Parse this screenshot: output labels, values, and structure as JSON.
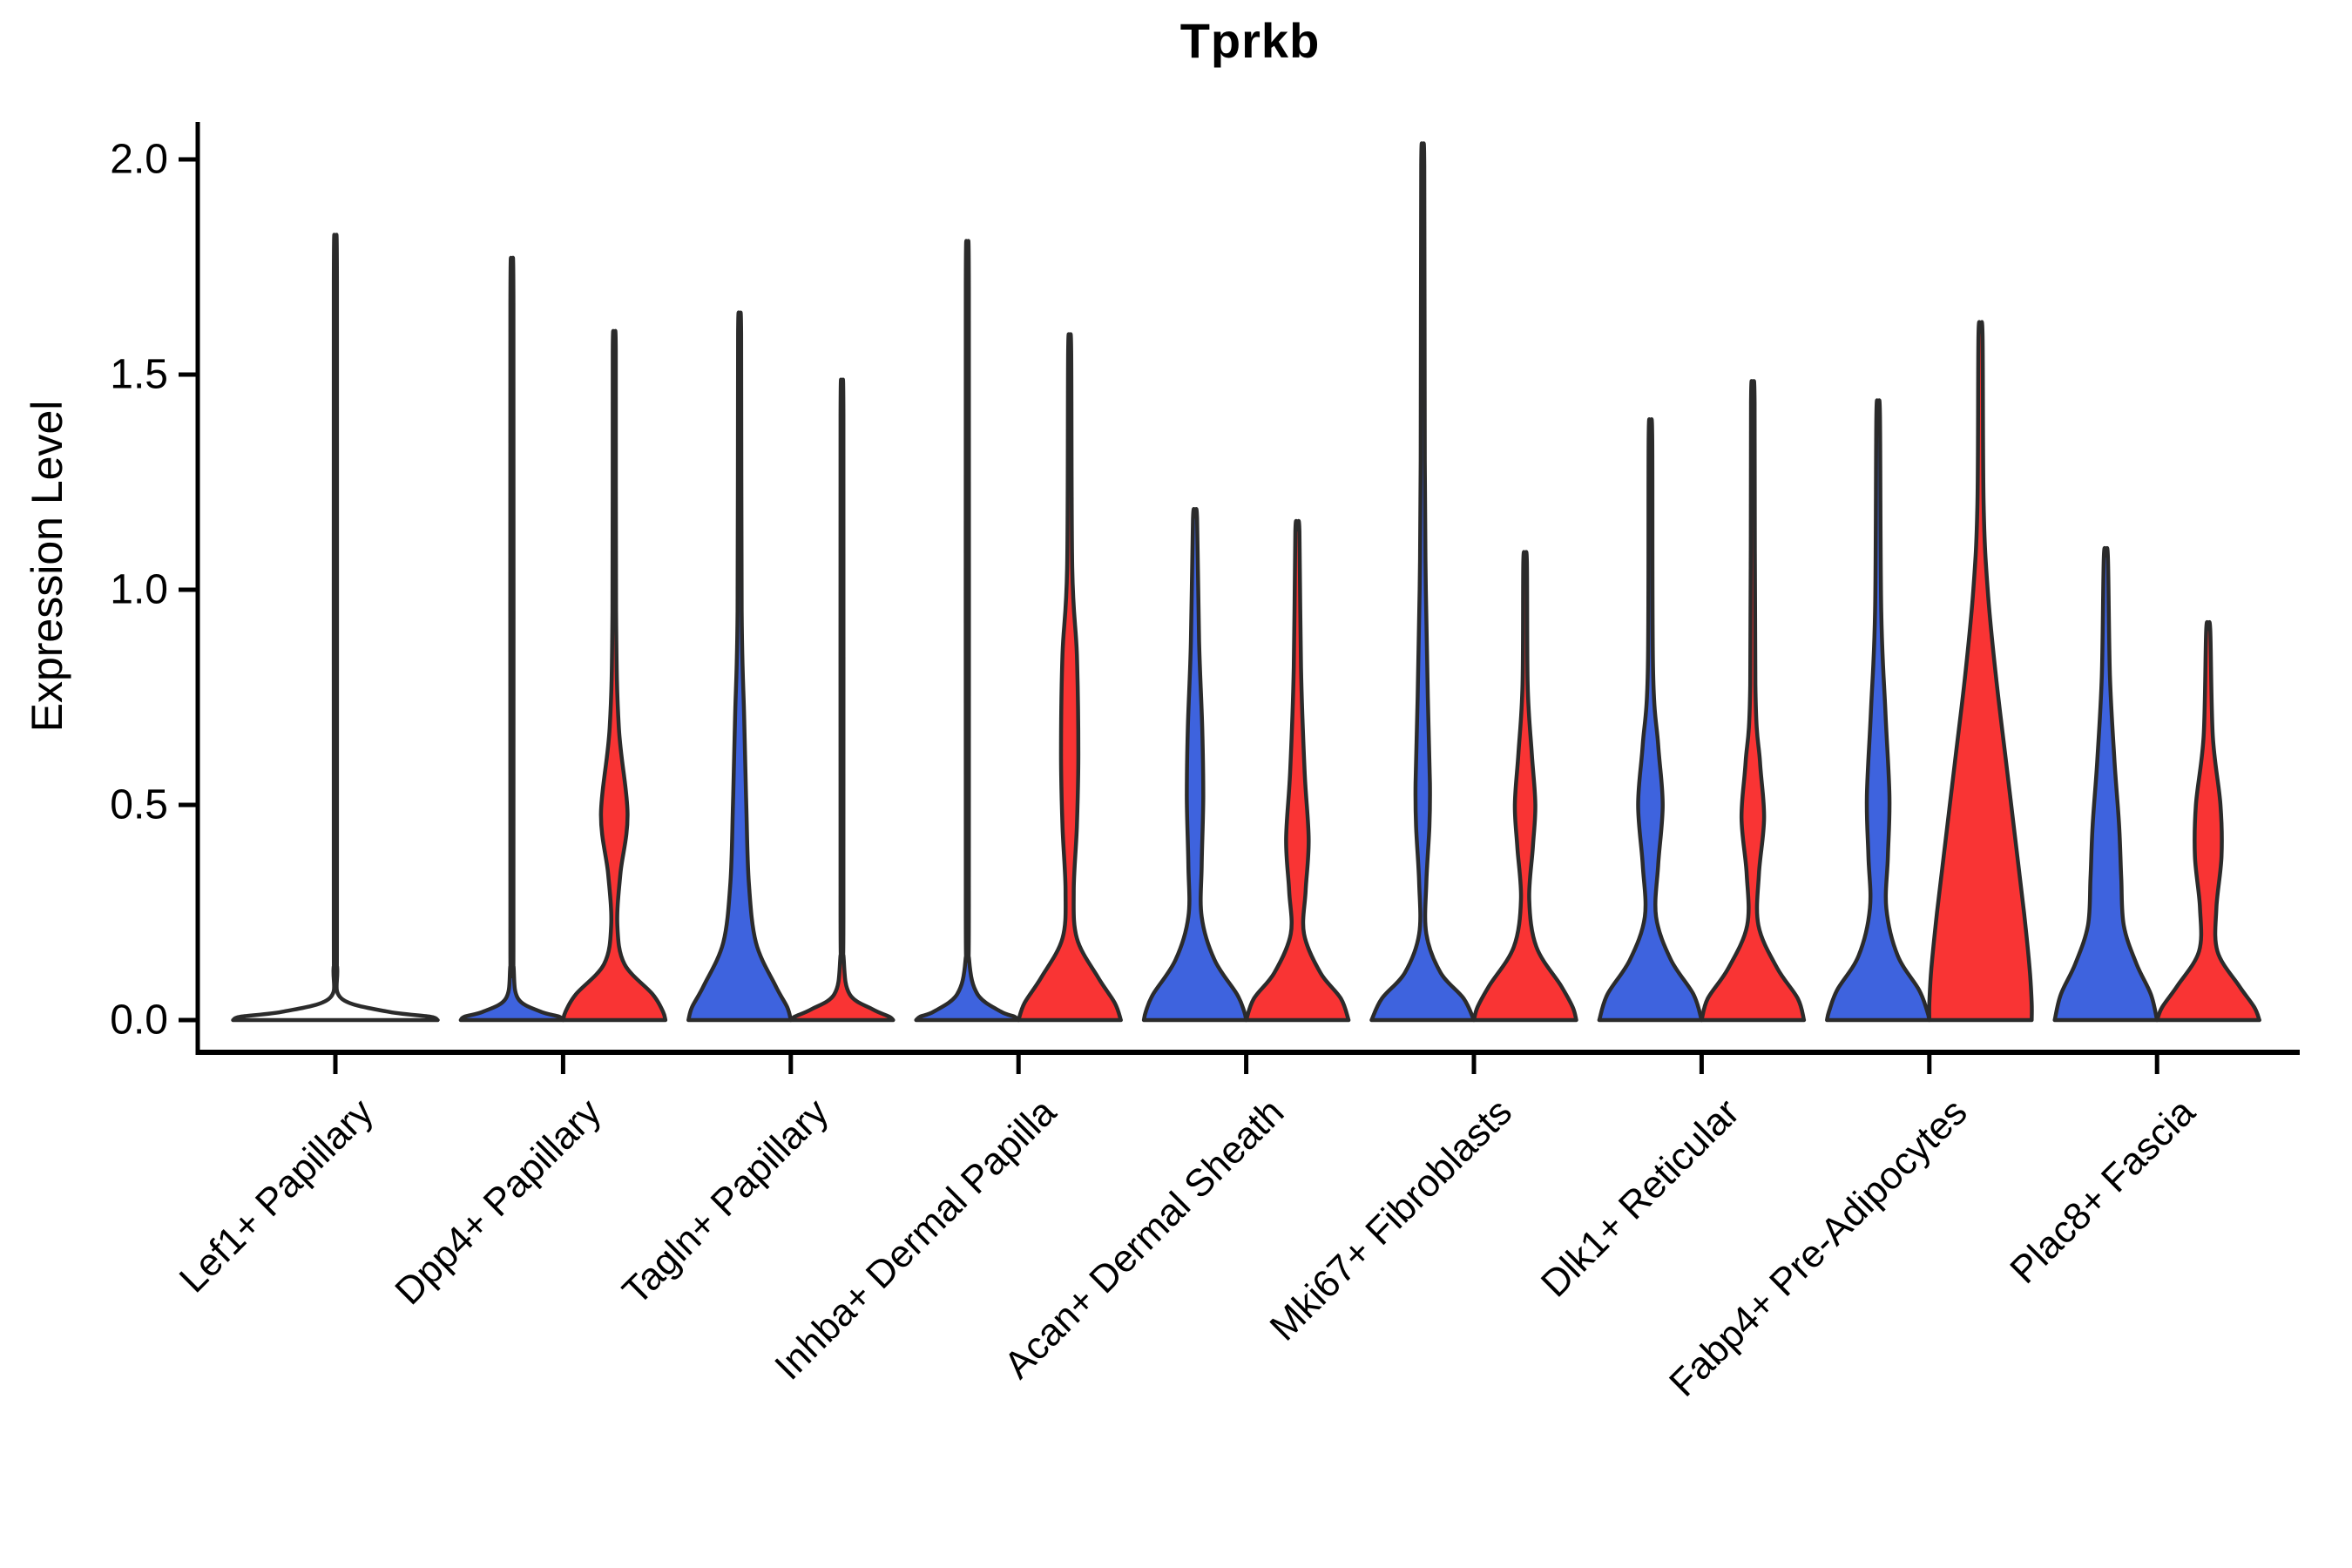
{
  "title": "Tprkb",
  "chart_data": {
    "type": "violin",
    "title": "Tprkb",
    "xlabel": "",
    "ylabel": "Expression Level",
    "ylim": [
      0,
      2.0
    ],
    "y_ticks": [
      0.0,
      0.5,
      1.0,
      1.5,
      2.0
    ],
    "y_tick_labels": [
      "0.0",
      "0.5",
      "1.0",
      "1.5",
      "2.0"
    ],
    "grid": false,
    "legend_position": "none",
    "style": "split-dodged violins, two groups per category (blue left, red right), dark outlines, white background",
    "colors": {
      "blue_group": "#3E63DE",
      "red_group": "#F93434",
      "outline": "#2B2B2B",
      "axis": "#000000"
    },
    "categories": [
      "Lef1+ Papillary",
      "Dpp4+ Papillary",
      "Tagln+ Papillary",
      "Inhba+ Dermal Papilla",
      "Acan+ Dermal Sheath",
      "Mki67+ Fibroblasts",
      "Dlk1+ Reticular",
      "Fabp4+ Pre-Adipocytes",
      "Plac8+ Fascia"
    ],
    "violins": [
      {
        "category": "Lef1+ Papillary",
        "groups": [
          {
            "side": "center",
            "color": "none",
            "max_expression": 1.72,
            "full_width": true,
            "profile": [
              [
                1.72,
                0
              ],
              [
                1.715,
                0.015
              ],
              [
                0.25,
                0.015
              ],
              [
                0.12,
                0.018
              ],
              [
                0.05,
                0.06
              ],
              [
                0.02,
                0.5
              ],
              [
                0.008,
                0.92
              ],
              [
                0,
                1
              ]
            ]
          }
        ]
      },
      {
        "category": "Dpp4+ Papillary",
        "groups": [
          {
            "side": "left",
            "color": "blue",
            "max_expression": 1.67,
            "profile": [
              [
                1.67,
                0
              ],
              [
                1.665,
                0.03
              ],
              [
                0.25,
                0.03
              ],
              [
                0.12,
                0.035
              ],
              [
                0.05,
                0.12
              ],
              [
                0.02,
                0.55
              ],
              [
                0.008,
                0.92
              ],
              [
                0,
                1
              ]
            ]
          },
          {
            "side": "right",
            "color": "red",
            "max_expression": 1.56,
            "profile": [
              [
                1.56,
                0
              ],
              [
                1.555,
                0.03
              ],
              [
                0.95,
                0.035
              ],
              [
                0.68,
                0.09
              ],
              [
                0.48,
                0.26
              ],
              [
                0.34,
                0.12
              ],
              [
                0.22,
                0.06
              ],
              [
                0.13,
                0.2
              ],
              [
                0.06,
                0.75
              ],
              [
                0.02,
                0.95
              ],
              [
                0,
                1
              ]
            ]
          }
        ]
      },
      {
        "category": "Tagln+ Papillary",
        "groups": [
          {
            "side": "left",
            "color": "blue",
            "max_expression": 1.6,
            "profile": [
              [
                1.6,
                0
              ],
              [
                1.595,
                0.03
              ],
              [
                0.95,
                0.04
              ],
              [
                0.7,
                0.09
              ],
              [
                0.5,
                0.13
              ],
              [
                0.32,
                0.18
              ],
              [
                0.18,
                0.32
              ],
              [
                0.08,
                0.7
              ],
              [
                0.03,
                0.93
              ],
              [
                0,
                1
              ]
            ]
          },
          {
            "side": "right",
            "color": "red",
            "max_expression": 1.41,
            "profile": [
              [
                1.41,
                0
              ],
              [
                1.405,
                0.028
              ],
              [
                0.3,
                0.028
              ],
              [
                0.14,
                0.035
              ],
              [
                0.06,
                0.15
              ],
              [
                0.025,
                0.6
              ],
              [
                0.008,
                0.92
              ],
              [
                0,
                1
              ]
            ]
          }
        ]
      },
      {
        "category": "Inhba+ Dermal Papilla",
        "groups": [
          {
            "side": "left",
            "color": "blue",
            "max_expression": 1.71,
            "profile": [
              [
                1.71,
                0
              ],
              [
                1.705,
                0.03
              ],
              [
                0.3,
                0.03
              ],
              [
                0.14,
                0.035
              ],
              [
                0.06,
                0.2
              ],
              [
                0.02,
                0.65
              ],
              [
                0.008,
                0.92
              ],
              [
                0,
                1
              ]
            ]
          },
          {
            "side": "right",
            "color": "red",
            "max_expression": 1.56,
            "profile": [
              [
                1.56,
                0
              ],
              [
                1.555,
                0.03
              ],
              [
                1.05,
                0.05
              ],
              [
                0.85,
                0.14
              ],
              [
                0.62,
                0.17
              ],
              [
                0.45,
                0.14
              ],
              [
                0.3,
                0.08
              ],
              [
                0.19,
                0.14
              ],
              [
                0.1,
                0.55
              ],
              [
                0.04,
                0.88
              ],
              [
                0,
                1
              ]
            ]
          }
        ]
      },
      {
        "category": "Acan+ Dermal Sheath",
        "groups": [
          {
            "side": "left",
            "color": "blue",
            "max_expression": 1.17,
            "profile": [
              [
                1.17,
                0
              ],
              [
                1.165,
                0.04
              ],
              [
                0.88,
                0.08
              ],
              [
                0.68,
                0.14
              ],
              [
                0.52,
                0.16
              ],
              [
                0.36,
                0.13
              ],
              [
                0.24,
                0.13
              ],
              [
                0.14,
                0.38
              ],
              [
                0.06,
                0.82
              ],
              [
                0.02,
                0.96
              ],
              [
                0,
                1
              ]
            ]
          },
          {
            "side": "right",
            "color": "red",
            "max_expression": 1.14,
            "profile": [
              [
                1.14,
                0
              ],
              [
                1.135,
                0.04
              ],
              [
                0.82,
                0.07
              ],
              [
                0.58,
                0.14
              ],
              [
                0.42,
                0.22
              ],
              [
                0.3,
                0.16
              ],
              [
                0.2,
                0.13
              ],
              [
                0.11,
                0.45
              ],
              [
                0.05,
                0.85
              ],
              [
                0,
                1
              ]
            ]
          }
        ]
      },
      {
        "category": "Mki67+ Fibroblasts",
        "groups": [
          {
            "side": "left",
            "color": "blue",
            "max_expression": 1.99,
            "profile": [
              [
                1.99,
                0
              ],
              [
                1.985,
                0.03
              ],
              [
                1.3,
                0.04
              ],
              [
                1.0,
                0.06
              ],
              [
                0.75,
                0.1
              ],
              [
                0.55,
                0.14
              ],
              [
                0.45,
                0.13
              ],
              [
                0.32,
                0.07
              ],
              [
                0.2,
                0.07
              ],
              [
                0.11,
                0.35
              ],
              [
                0.05,
                0.8
              ],
              [
                0,
                1
              ]
            ]
          },
          {
            "side": "right",
            "color": "red",
            "max_expression": 1.07,
            "profile": [
              [
                1.07,
                0
              ],
              [
                1.065,
                0.035
              ],
              [
                0.78,
                0.05
              ],
              [
                0.62,
                0.13
              ],
              [
                0.5,
                0.2
              ],
              [
                0.4,
                0.15
              ],
              [
                0.28,
                0.08
              ],
              [
                0.17,
                0.22
              ],
              [
                0.08,
                0.7
              ],
              [
                0.03,
                0.93
              ],
              [
                0,
                1
              ]
            ]
          }
        ]
      },
      {
        "category": "Dlk1+ Reticular",
        "groups": [
          {
            "side": "left",
            "color": "blue",
            "max_expression": 1.36,
            "profile": [
              [
                1.36,
                0
              ],
              [
                1.355,
                0.035
              ],
              [
                0.82,
                0.05
              ],
              [
                0.64,
                0.15
              ],
              [
                0.5,
                0.24
              ],
              [
                0.36,
                0.15
              ],
              [
                0.24,
                0.11
              ],
              [
                0.14,
                0.4
              ],
              [
                0.06,
                0.84
              ],
              [
                0,
                1
              ]
            ]
          },
          {
            "side": "right",
            "color": "red",
            "max_expression": 1.44,
            "profile": [
              [
                1.44,
                0
              ],
              [
                1.435,
                0.035
              ],
              [
                0.78,
                0.05
              ],
              [
                0.6,
                0.14
              ],
              [
                0.47,
                0.22
              ],
              [
                0.34,
                0.12
              ],
              [
                0.22,
                0.11
              ],
              [
                0.12,
                0.48
              ],
              [
                0.05,
                0.88
              ],
              [
                0,
                1
              ]
            ]
          }
        ]
      },
      {
        "category": "Fabp4+ Pre-Adipocytes",
        "groups": [
          {
            "side": "left",
            "color": "blue",
            "max_expression": 1.41,
            "profile": [
              [
                1.41,
                0
              ],
              [
                1.405,
                0.035
              ],
              [
                0.95,
                0.06
              ],
              [
                0.72,
                0.14
              ],
              [
                0.52,
                0.22
              ],
              [
                0.38,
                0.19
              ],
              [
                0.26,
                0.16
              ],
              [
                0.15,
                0.38
              ],
              [
                0.07,
                0.8
              ],
              [
                0.02,
                0.96
              ],
              [
                0,
                1
              ]
            ]
          },
          {
            "side": "right",
            "color": "red",
            "max_expression": 1.6,
            "profile": [
              [
                1.6,
                0
              ],
              [
                1.59,
                0.04
              ],
              [
                1.2,
                0.06
              ],
              [
                1.0,
                0.14
              ],
              [
                0.8,
                0.3
              ],
              [
                0.6,
                0.5
              ],
              [
                0.42,
                0.68
              ],
              [
                0.25,
                0.85
              ],
              [
                0.12,
                0.96
              ],
              [
                0.04,
                1
              ],
              [
                0,
                1
              ]
            ]
          }
        ]
      },
      {
        "category": "Plac8+ Fascia",
        "groups": [
          {
            "side": "left",
            "color": "blue",
            "max_expression": 1.08,
            "profile": [
              [
                1.08,
                0
              ],
              [
                1.075,
                0.04
              ],
              [
                0.8,
                0.08
              ],
              [
                0.6,
                0.17
              ],
              [
                0.45,
                0.26
              ],
              [
                0.33,
                0.3
              ],
              [
                0.22,
                0.35
              ],
              [
                0.13,
                0.6
              ],
              [
                0.06,
                0.88
              ],
              [
                0,
                1
              ]
            ]
          },
          {
            "side": "right",
            "color": "red",
            "max_expression": 0.91,
            "profile": [
              [
                0.91,
                0
              ],
              [
                0.905,
                0.04
              ],
              [
                0.66,
                0.09
              ],
              [
                0.5,
                0.24
              ],
              [
                0.38,
                0.26
              ],
              [
                0.26,
                0.16
              ],
              [
                0.16,
                0.18
              ],
              [
                0.08,
                0.6
              ],
              [
                0.03,
                0.9
              ],
              [
                0,
                1
              ]
            ]
          }
        ]
      }
    ]
  }
}
